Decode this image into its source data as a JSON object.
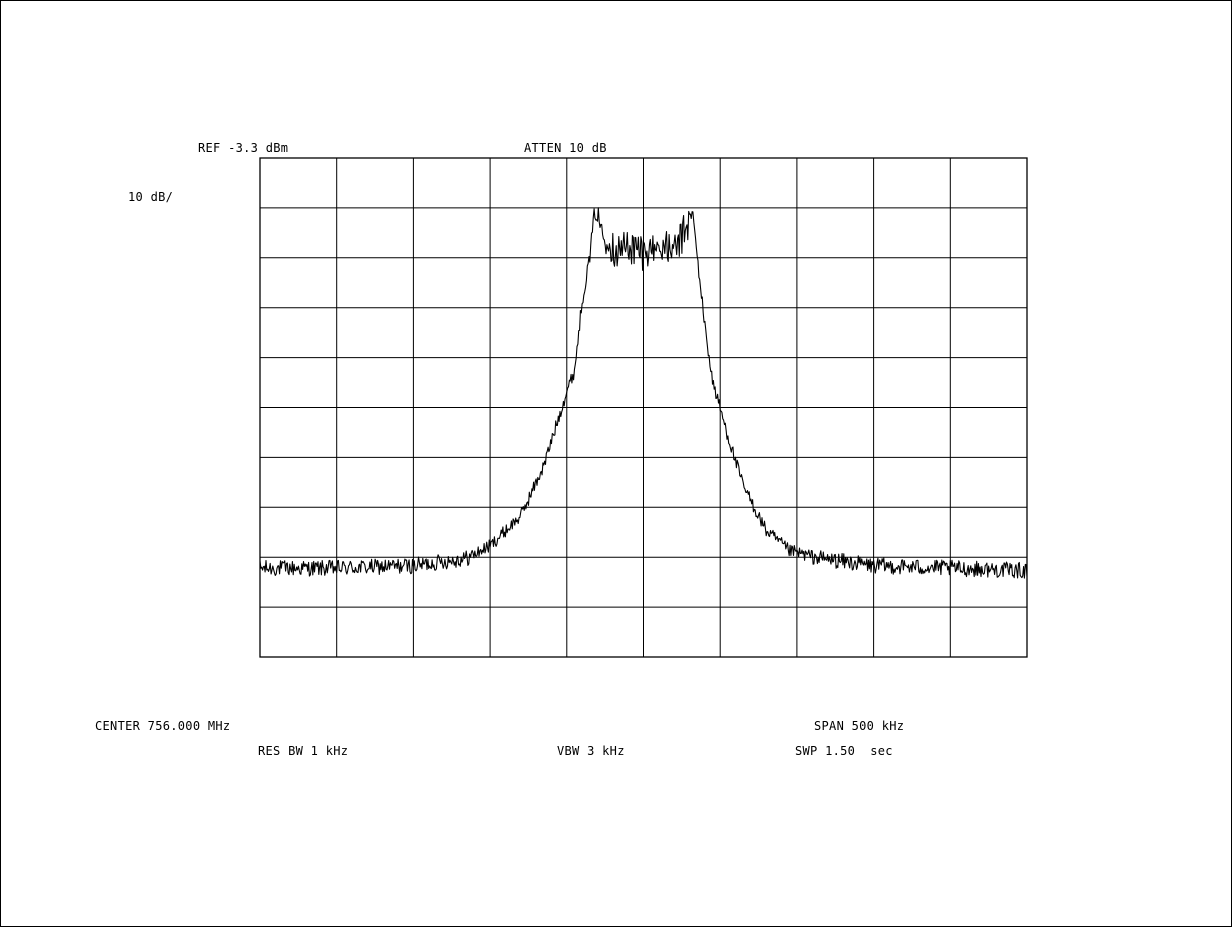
{
  "header": {
    "ref_level": "REF -3.3 dBm",
    "attenuation": "ATTEN 10 dB",
    "scale": "10 dB/"
  },
  "footer": {
    "center": "CENTER 756.000 MHz",
    "span": "SPAN 500 kHz",
    "res_bw": "RES BW 1 kHz",
    "vbw": "VBW 3 kHz",
    "sweep": "SWP 1.50  sec"
  },
  "chart_data": {
    "type": "line",
    "title": "",
    "xlabel": "",
    "ylabel": "",
    "grid": true,
    "x_divisions": 10,
    "y_divisions": 10,
    "x_unit": "kHz offset from center",
    "xlim": [
      -250,
      250
    ],
    "ylim": [
      -103.3,
      -3.3
    ],
    "series": [
      {
        "x": [
          -250,
          -200,
          -150,
          -115,
          -100,
          -80,
          -65,
          -55,
          -50,
          -45,
          -40,
          -35,
          -32,
          -28,
          -20,
          -10,
          0,
          10,
          20,
          28,
          32,
          35,
          40,
          45,
          55,
          65,
          80,
          95,
          115,
          150,
          200,
          250
        ],
        "values": [
          -85.5,
          -85.5,
          -85,
          -83.5,
          -81,
          -75,
          -65,
          -55,
          -50,
          -46,
          -32,
          -23,
          -14,
          -17,
          -22,
          -21,
          -22,
          -21,
          -22,
          -17,
          -14,
          -23,
          -37,
          -48,
          -59,
          -69,
          -78,
          -82,
          -83.5,
          -85,
          -85.5,
          -86
        ]
      }
    ],
    "line_color": "#000000"
  }
}
